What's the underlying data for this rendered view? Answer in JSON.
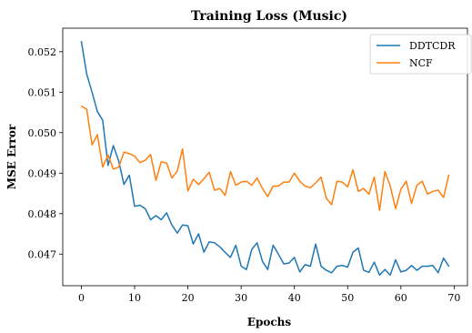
{
  "chart_data": {
    "type": "line",
    "title": "Training Loss (Music)",
    "xlabel": "Epochs",
    "ylabel": "MSE Error",
    "xlim": [
      -3.5,
      72.5
    ],
    "ylim": [
      0.04622,
      0.05258
    ],
    "xticks": [
      0,
      10,
      20,
      30,
      40,
      50,
      60,
      70
    ],
    "yticks": [
      0.047,
      0.048,
      0.049,
      0.05,
      0.051,
      0.052
    ],
    "ytick_labels": [
      "0.047",
      "0.048",
      "0.049",
      "0.050",
      "0.051",
      "0.052"
    ],
    "grid": false,
    "legend_position": "top-right",
    "x": [
      0,
      1,
      2,
      3,
      4,
      5,
      6,
      7,
      8,
      9,
      10,
      11,
      12,
      13,
      14,
      15,
      16,
      17,
      18,
      19,
      20,
      21,
      22,
      23,
      24,
      25,
      26,
      27,
      28,
      29,
      30,
      31,
      32,
      33,
      34,
      35,
      36,
      37,
      38,
      39,
      40,
      41,
      42,
      43,
      44,
      45,
      46,
      47,
      48,
      49,
      50,
      51,
      52,
      53,
      54,
      55,
      56,
      57,
      58,
      59,
      60,
      61,
      62,
      63,
      64,
      65,
      66,
      67,
      68,
      69
    ],
    "series": [
      {
        "name": "DDTCDR",
        "color": "#1f77b4",
        "values": [
          0.05225,
          0.05145,
          0.051,
          0.05052,
          0.05031,
          0.04919,
          0.04968,
          0.0493,
          0.04872,
          0.04895,
          0.04818,
          0.04821,
          0.04812,
          0.04785,
          0.04795,
          0.04785,
          0.04802,
          0.04772,
          0.04752,
          0.04772,
          0.0477,
          0.04725,
          0.0475,
          0.04705,
          0.0473,
          0.04728,
          0.04718,
          0.04704,
          0.04692,
          0.04722,
          0.0467,
          0.04662,
          0.04712,
          0.04728,
          0.04682,
          0.04662,
          0.04722,
          0.047,
          0.04676,
          0.04678,
          0.04692,
          0.04656,
          0.04674,
          0.0467,
          0.04725,
          0.0467,
          0.0466,
          0.04654,
          0.0467,
          0.04672,
          0.04668,
          0.04705,
          0.04715,
          0.0466,
          0.04655,
          0.0468,
          0.04648,
          0.04662,
          0.04648,
          0.04686,
          0.04656,
          0.0466,
          0.04672,
          0.0466,
          0.0467,
          0.0467,
          0.04672,
          0.04654,
          0.0469,
          0.0467
        ]
      },
      {
        "name": "NCF",
        "color": "#ff7f0e",
        "values": [
          0.05065,
          0.05058,
          0.0497,
          0.04995,
          0.04915,
          0.04945,
          0.0491,
          0.04915,
          0.04952,
          0.04948,
          0.04942,
          0.04926,
          0.04932,
          0.04946,
          0.04882,
          0.04928,
          0.04925,
          0.04888,
          0.04905,
          0.0496,
          0.04856,
          0.04885,
          0.04872,
          0.04886,
          0.04902,
          0.04858,
          0.04862,
          0.04845,
          0.04904,
          0.0487,
          0.04878,
          0.0488,
          0.0487,
          0.04888,
          0.04862,
          0.04842,
          0.04868,
          0.04868,
          0.04878,
          0.04878,
          0.049,
          0.0488,
          0.04868,
          0.04864,
          0.04876,
          0.0489,
          0.04838,
          0.04822,
          0.0488,
          0.04878,
          0.04866,
          0.04908,
          0.04855,
          0.04862,
          0.04848,
          0.0489,
          0.04808,
          0.04904,
          0.04868,
          0.04812,
          0.0486,
          0.0488,
          0.04825,
          0.0487,
          0.0488,
          0.04848,
          0.04855,
          0.04858,
          0.0484,
          0.04895
        ]
      }
    ]
  }
}
